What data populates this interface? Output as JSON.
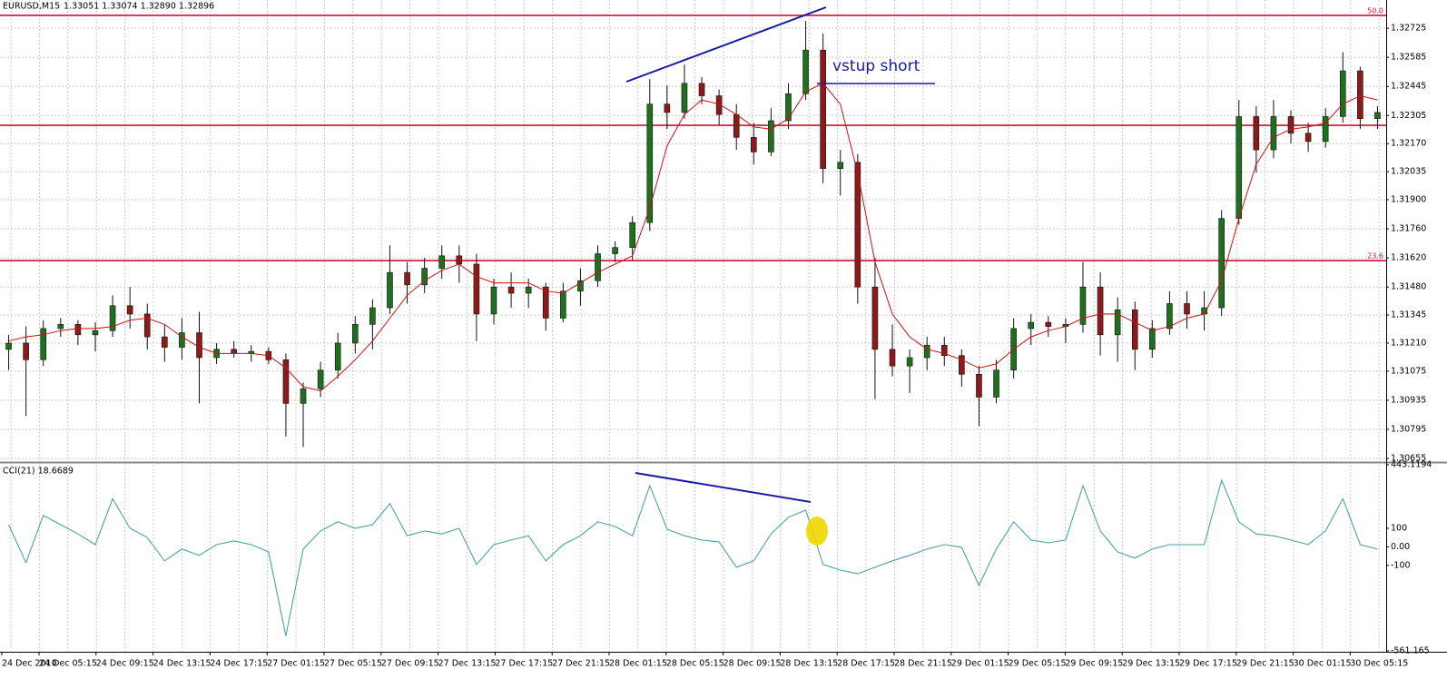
{
  "chart_data": [
    {
      "type": "candlestick",
      "title": "EURUSD,M15",
      "subtitle": "1.33051 1.33074 1.32890 1.32896",
      "annotation": "vstup short",
      "up_color": "#1f6f1f",
      "down_color": "#8b1a1a",
      "wick_color": "#111111",
      "candles": [
        [
          1.3118,
          1.3125,
          1.3108,
          1.3121
        ],
        [
          1.3121,
          1.3129,
          1.3086,
          1.3113
        ],
        [
          1.3113,
          1.3132,
          1.311,
          1.3128
        ],
        [
          1.3128,
          1.3133,
          1.3124,
          1.313
        ],
        [
          1.313,
          1.3132,
          1.312,
          1.3125
        ],
        [
          1.3125,
          1.3131,
          1.3117,
          1.3127
        ],
        [
          1.3127,
          1.3144,
          1.3124,
          1.3139
        ],
        [
          1.3139,
          1.3148,
          1.3128,
          1.3135
        ],
        [
          1.3135,
          1.314,
          1.3118,
          1.3124
        ],
        [
          1.3124,
          1.313,
          1.3112,
          1.3119
        ],
        [
          1.3119,
          1.3133,
          1.3113,
          1.3126
        ],
        [
          1.3126,
          1.3136,
          1.3092,
          1.3114
        ],
        [
          1.3114,
          1.3121,
          1.3111,
          1.3118
        ],
        [
          1.3118,
          1.3122,
          1.3114,
          1.3116
        ],
        [
          1.3116,
          1.312,
          1.3112,
          1.3117
        ],
        [
          1.3117,
          1.3119,
          1.3111,
          1.3113
        ],
        [
          1.3113,
          1.3116,
          1.3076,
          1.3092
        ],
        [
          1.3092,
          1.3102,
          1.3071,
          1.3099
        ],
        [
          1.3099,
          1.3112,
          1.3095,
          1.3108
        ],
        [
          1.3108,
          1.3126,
          1.3104,
          1.3121
        ],
        [
          1.3121,
          1.3134,
          1.3116,
          1.313
        ],
        [
          1.313,
          1.3142,
          1.3118,
          1.3138
        ],
        [
          1.3138,
          1.3168,
          1.3135,
          1.3155
        ],
        [
          1.3155,
          1.316,
          1.314,
          1.3149
        ],
        [
          1.3149,
          1.3162,
          1.3145,
          1.3157
        ],
        [
          1.3157,
          1.3168,
          1.3152,
          1.3163
        ],
        [
          1.3163,
          1.3168,
          1.315,
          1.3159
        ],
        [
          1.3159,
          1.3164,
          1.3122,
          1.3135
        ],
        [
          1.3135,
          1.3152,
          1.313,
          1.3148
        ],
        [
          1.3148,
          1.3155,
          1.3138,
          1.3145
        ],
        [
          1.3145,
          1.3152,
          1.3138,
          1.3148
        ],
        [
          1.3148,
          1.315,
          1.3127,
          1.3133
        ],
        [
          1.3133,
          1.315,
          1.3131,
          1.3146
        ],
        [
          1.3146,
          1.3157,
          1.3139,
          1.3151
        ],
        [
          1.3151,
          1.3168,
          1.3148,
          1.3164
        ],
        [
          1.3164,
          1.317,
          1.316,
          1.3167
        ],
        [
          1.3167,
          1.3182,
          1.3161,
          1.3179
        ],
        [
          1.3179,
          1.3248,
          1.3175,
          1.3236
        ],
        [
          1.3236,
          1.3245,
          1.3224,
          1.3232
        ],
        [
          1.3232,
          1.3255,
          1.3229,
          1.3246
        ],
        [
          1.3246,
          1.3249,
          1.3236,
          1.324
        ],
        [
          1.324,
          1.3243,
          1.3226,
          1.3231
        ],
        [
          1.3231,
          1.3236,
          1.3214,
          1.322
        ],
        [
          1.322,
          1.3227,
          1.3207,
          1.3213
        ],
        [
          1.3213,
          1.3234,
          1.3211,
          1.3228
        ],
        [
          1.3228,
          1.3246,
          1.3224,
          1.3241
        ],
        [
          1.3241,
          1.3276,
          1.3238,
          1.3262
        ],
        [
          1.3262,
          1.327,
          1.3198,
          1.3205
        ],
        [
          1.3205,
          1.3214,
          1.3192,
          1.3208
        ],
        [
          1.3208,
          1.3212,
          1.314,
          1.3148
        ],
        [
          1.3148,
          1.3162,
          1.3094,
          1.3118
        ],
        [
          1.3118,
          1.313,
          1.3105,
          1.311
        ],
        [
          1.311,
          1.3118,
          1.3097,
          1.3114
        ],
        [
          1.3114,
          1.3124,
          1.3108,
          1.312
        ],
        [
          1.312,
          1.3124,
          1.311,
          1.3115
        ],
        [
          1.3115,
          1.3118,
          1.31,
          1.3106
        ],
        [
          1.3106,
          1.311,
          1.3081,
          1.3095
        ],
        [
          1.3095,
          1.3113,
          1.3092,
          1.3108
        ],
        [
          1.3108,
          1.3133,
          1.3104,
          1.3128
        ],
        [
          1.3128,
          1.3135,
          1.312,
          1.3131
        ],
        [
          1.3131,
          1.3134,
          1.3124,
          1.3129
        ],
        [
          1.3129,
          1.3133,
          1.3121,
          1.313
        ],
        [
          1.313,
          1.316,
          1.3126,
          1.3148
        ],
        [
          1.3148,
          1.3155,
          1.3115,
          1.3125
        ],
        [
          1.3125,
          1.3143,
          1.3112,
          1.3137
        ],
        [
          1.3137,
          1.3141,
          1.3108,
          1.3118
        ],
        [
          1.3118,
          1.3132,
          1.3114,
          1.3128
        ],
        [
          1.3128,
          1.3146,
          1.3125,
          1.314
        ],
        [
          1.314,
          1.3146,
          1.3128,
          1.3135
        ],
        [
          1.3135,
          1.3146,
          1.3127,
          1.3138
        ],
        [
          1.3138,
          1.3185,
          1.3134,
          1.3181
        ],
        [
          1.3181,
          1.3238,
          1.3178,
          1.323
        ],
        [
          1.323,
          1.3235,
          1.3203,
          1.3214
        ],
        [
          1.3214,
          1.3238,
          1.321,
          1.323
        ],
        [
          1.323,
          1.3233,
          1.3217,
          1.3222
        ],
        [
          1.3222,
          1.3227,
          1.3213,
          1.3218
        ],
        [
          1.3218,
          1.3234,
          1.3215,
          1.323
        ],
        [
          1.323,
          1.3261,
          1.3227,
          1.3252
        ],
        [
          1.3252,
          1.3254,
          1.3224,
          1.3229
        ],
        [
          1.3229,
          1.3235,
          1.3224,
          1.3232
        ]
      ],
      "ma": {
        "color": "#cc1111",
        "values": [
          1.3122,
          1.3124,
          1.3125,
          1.3127,
          1.3128,
          1.3128,
          1.3129,
          1.3132,
          1.3133,
          1.313,
          1.3124,
          1.3119,
          1.3116,
          1.3116,
          1.3116,
          1.3115,
          1.3109,
          1.31,
          1.3098,
          1.3105,
          1.3113,
          1.3122,
          1.3133,
          1.3144,
          1.3151,
          1.3156,
          1.3159,
          1.3153,
          1.315,
          1.315,
          1.315,
          1.3146,
          1.3145,
          1.315,
          1.3155,
          1.3159,
          1.3163,
          1.3186,
          1.3216,
          1.3231,
          1.3238,
          1.3236,
          1.3231,
          1.3225,
          1.3224,
          1.3229,
          1.3242,
          1.3246,
          1.3236,
          1.3203,
          1.316,
          1.3135,
          1.3124,
          1.3118,
          1.3116,
          1.3113,
          1.3109,
          1.3111,
          1.3118,
          1.3124,
          1.3127,
          1.3129,
          1.3133,
          1.3135,
          1.3135,
          1.3131,
          1.3127,
          1.3129,
          1.3133,
          1.3135,
          1.3151,
          1.3181,
          1.3207,
          1.322,
          1.3224,
          1.3225,
          1.3227,
          1.3236,
          1.324,
          1.3238
        ]
      },
      "levels": [
        {
          "value": 1.32787,
          "label": "50.0",
          "color": "#cc1133"
        },
        {
          "value": 1.32258,
          "color": "#cc1133"
        },
        {
          "value": 1.31607,
          "label": "23.6",
          "color": "#cc1133"
        }
      ],
      "ylim": [
        1.30642,
        1.32861
      ],
      "yticks": [
        1.32725,
        1.32585,
        1.32445,
        1.32305,
        {
          "value": 1.3217,
          "label": "1.32170"
        },
        1.32035,
        {
          "value": 1.319,
          "label": "1.31900"
        },
        {
          "value": 1.3176,
          "label": "1.31760"
        },
        {
          "value": 1.3162,
          "label": "1.31620"
        },
        {
          "value": 1.3148,
          "label": "1.31480"
        },
        1.31345,
        {
          "value": 1.3121,
          "label": "1.31210"
        },
        1.31075,
        1.30935,
        1.30795,
        1.30655
      ],
      "grid": true,
      "time_labels": [
        "24 Dec 2010",
        "24 Dec 05:15",
        "24 Dec 09:15",
        "24 Dec 13:15",
        "24 Dec 17:15",
        "27 Dec 01:15",
        "27 Dec 05:15",
        "27 Dec 09:15",
        "27 Dec 13:15",
        "27 Dec 17:15",
        "27 Dec 21:15",
        "28 Dec 01:15",
        "28 Dec 05:15",
        "28 Dec 09:15",
        "28 Dec 13:15",
        "28 Dec 17:15",
        "28 Dec 21:15",
        "29 Dec 01:15",
        "29 Dec 05:15",
        "29 Dec 09:15",
        "29 Dec 13:15",
        "29 Dec 17:15",
        "29 Dec 21:15",
        "30 Dec 01:15",
        "30 Dec 05:15"
      ]
    },
    {
      "type": "line",
      "title": "CCI(21) 18.6689",
      "color": "#4aa3a3",
      "values": [
        120,
        -85,
        170,
        120,
        70,
        12,
        260,
        100,
        50,
        -75,
        -12,
        -46,
        12,
        32,
        12,
        -27,
        -480,
        -12,
        86,
        135,
        100,
        120,
        233,
        60,
        86,
        70,
        100,
        -95,
        12,
        37,
        60,
        -75,
        12,
        60,
        135,
        110,
        60,
        330,
        95,
        60,
        37,
        27,
        -110,
        -75,
        70,
        160,
        198,
        -95,
        -125,
        -145,
        -110,
        -75,
        -46,
        -12,
        12,
        -2,
        -208,
        -12,
        135,
        37,
        22,
        37,
        330,
        86,
        -27,
        -61,
        -12,
        12,
        12,
        12,
        360,
        135,
        70,
        60,
        37,
        12,
        86,
        260,
        12,
        -12
      ],
      "ylim": [
        -561.165,
        443.1194
      ],
      "yticks": [
        443.1194,
        100,
        {
          "value": 0,
          "label": "0.00"
        },
        -100,
        -561.165
      ],
      "grid": true
    }
  ]
}
